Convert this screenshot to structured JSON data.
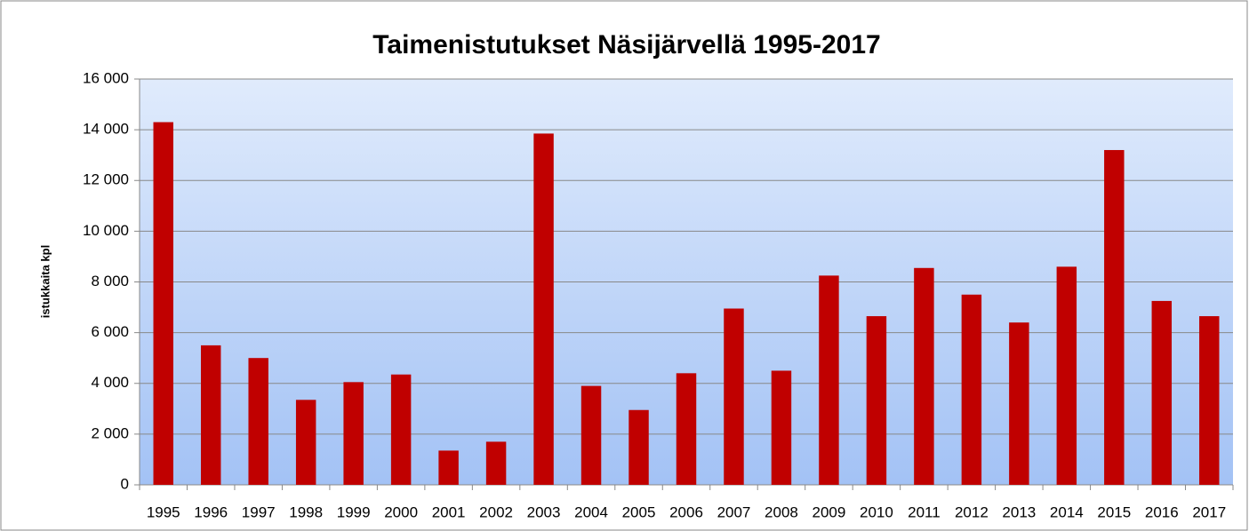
{
  "chart_data": {
    "type": "bar",
    "title": "Taimenistutukset Näsijärvellä 1995-2017",
    "y_label": "istukkaita  kpl",
    "categories": [
      "1995",
      "1996",
      "1997",
      "1998",
      "1999",
      "2000",
      "2001",
      "2002",
      "2003",
      "2004",
      "2005",
      "2006",
      "2007",
      "2008",
      "2009",
      "2010",
      "2011",
      "2012",
      "2013",
      "2014",
      "2015",
      "2016",
      "2017"
    ],
    "values": [
      14300,
      5500,
      5000,
      3350,
      4050,
      4350,
      1350,
      1700,
      13850,
      3900,
      2950,
      4400,
      6950,
      4500,
      8250,
      6650,
      8550,
      7500,
      6400,
      8600,
      13200,
      7250,
      6650
    ],
    "color": "#c00000",
    "ylim": [
      0,
      16000
    ],
    "yticks": [
      0,
      {
        "value": 2000,
        "label": "2 000"
      },
      {
        "value": 4000,
        "label": "4 000"
      },
      {
        "value": 6000,
        "label": "6 000"
      },
      {
        "value": 8000,
        "label": "8 000"
      },
      {
        "value": 10000,
        "label": "10 000"
      },
      {
        "value": 12000,
        "label": "12 000"
      },
      {
        "value": 14000,
        "label": "14 000"
      },
      {
        "value": 16000,
        "label": "16 000"
      }
    ],
    "grid": true
  }
}
